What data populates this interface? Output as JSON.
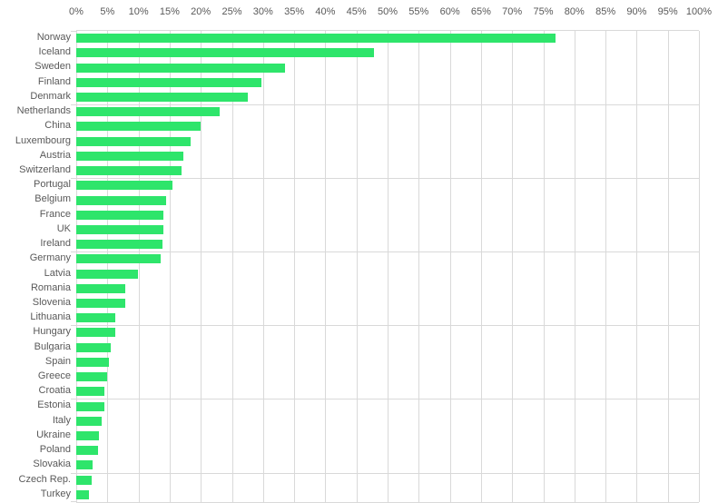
{
  "chart_data": {
    "type": "bar",
    "orientation": "horizontal",
    "title": "",
    "categories": [
      "Norway",
      "Iceland",
      "Sweden",
      "Finland",
      "Denmark",
      "Netherlands",
      "China",
      "Luxembourg",
      "Austria",
      "Switzerland",
      "Portugal",
      "Belgium",
      "France",
      "UK",
      "Ireland",
      "Germany",
      "Latvia",
      "Romania",
      "Slovenia",
      "Lithuania",
      "Hungary",
      "Bulgaria",
      "Spain",
      "Greece",
      "Croatia",
      "Estonia",
      "Italy",
      "Ukraine",
      "Poland",
      "Slovakia",
      "Czech Rep.",
      "Turkey"
    ],
    "values": [
      76.9,
      47.8,
      33.5,
      29.8,
      27.6,
      23.0,
      19.9,
      18.4,
      17.2,
      16.9,
      15.4,
      14.4,
      14.0,
      14.0,
      13.9,
      13.6,
      9.9,
      7.9,
      7.8,
      6.2,
      6.2,
      5.6,
      5.3,
      4.9,
      4.5,
      4.5,
      4.1,
      3.7,
      3.5,
      2.6,
      2.5,
      2.0
    ],
    "unit": "%",
    "x_axis": {
      "position": "top",
      "min": 0,
      "max": 100,
      "step": 5,
      "tick_labels": [
        "0%",
        "5%",
        "10%",
        "15%",
        "20%",
        "25%",
        "30%",
        "35%",
        "40%",
        "45%",
        "50%",
        "55%",
        "60%",
        "65%",
        "70%",
        "75%",
        "80%",
        "85%",
        "90%",
        "95%",
        "100%"
      ]
    },
    "grid": true,
    "category_gridline_interval": 5,
    "legend": "none",
    "colors": {
      "bar": "#2ee56b",
      "gridline": "#d9d9d9",
      "axis_label": "#595959",
      "background": "#ffffff"
    }
  }
}
